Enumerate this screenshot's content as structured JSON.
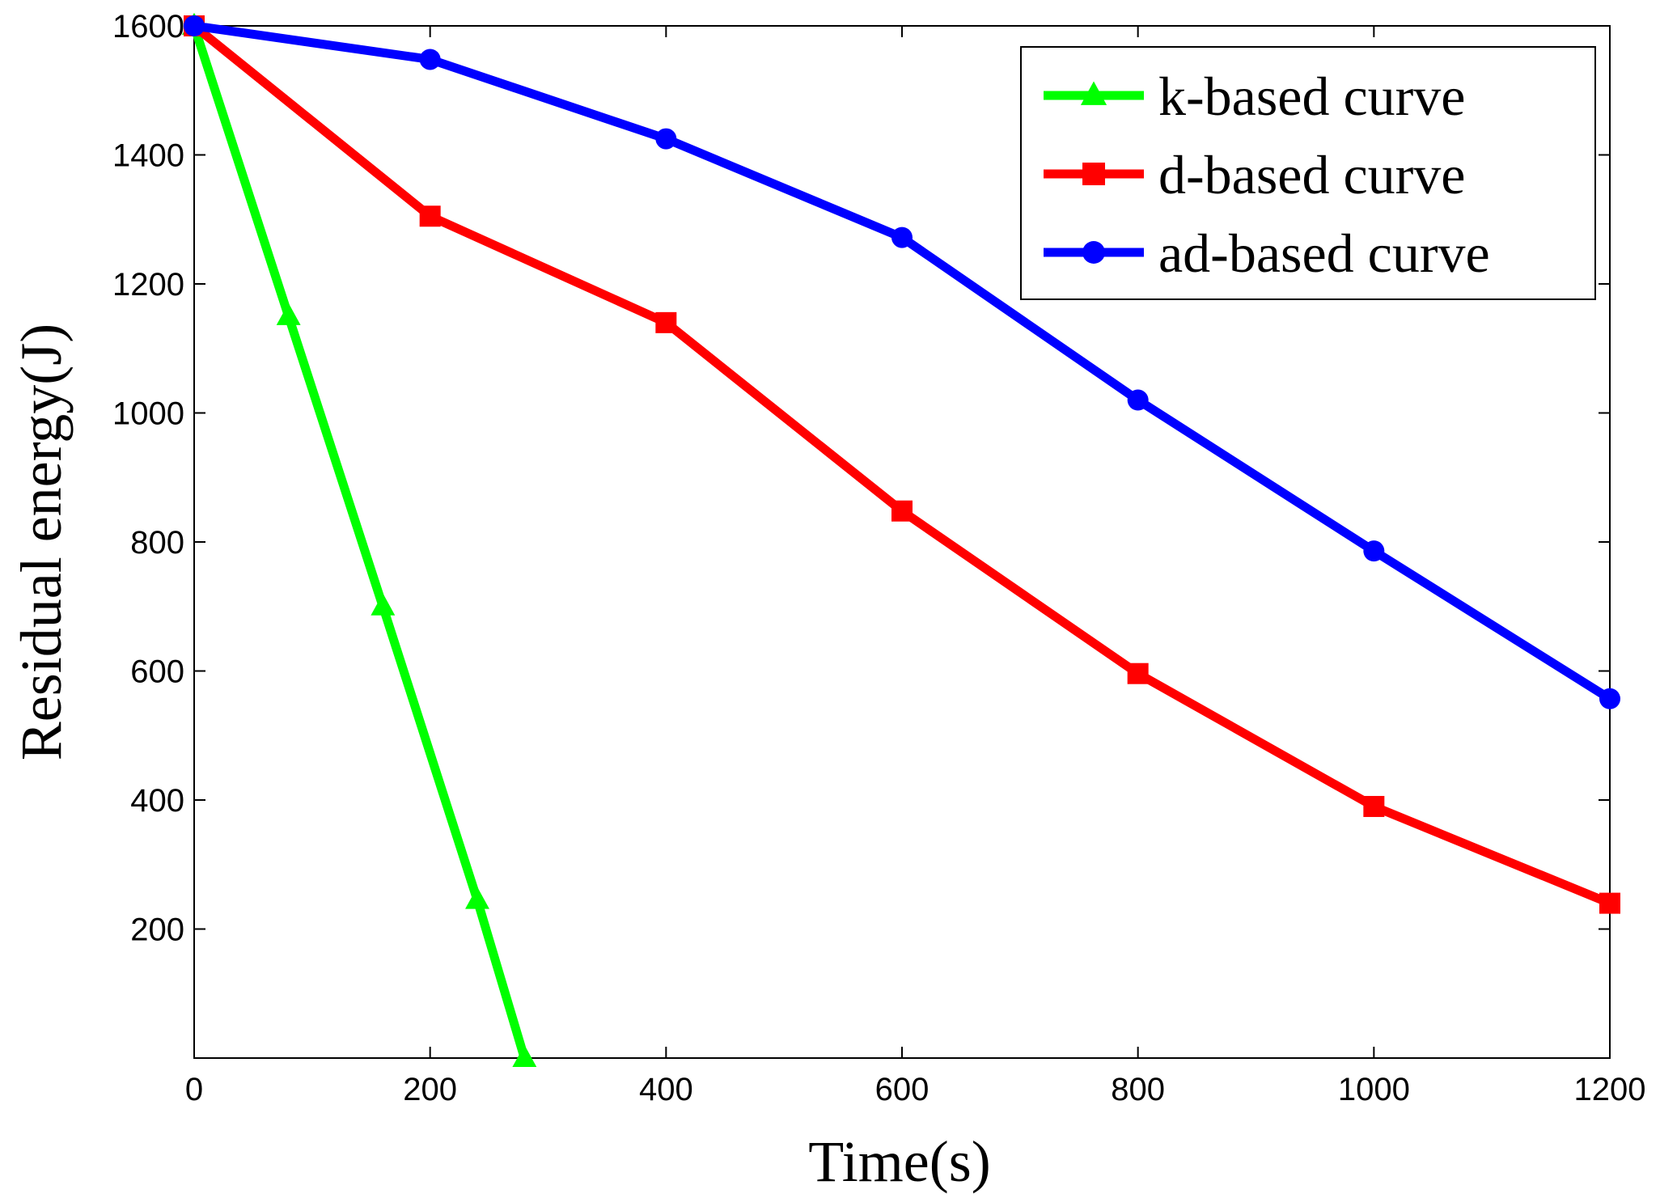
{
  "chart_data": {
    "type": "line",
    "title": "",
    "xlabel": "Time(s)",
    "ylabel": "Residual energy(J)",
    "xlim": [
      0,
      1200
    ],
    "ylim": [
      0,
      1600
    ],
    "xticks": [
      "0",
      "200",
      "400",
      "600",
      "800",
      "1000",
      "1200"
    ],
    "yticks": [
      "200",
      "400",
      "600",
      "800",
      "1000",
      "1200",
      "1400",
      "1600"
    ],
    "grid": false,
    "legend_position": "top-right",
    "series": [
      {
        "name": "k-based curve",
        "color": "#00ff00",
        "marker": "triangle",
        "x": [
          0,
          80,
          160,
          240,
          280
        ],
        "y": [
          1600,
          1150,
          700,
          245,
          0
        ]
      },
      {
        "name": "d-based curve",
        "color": "#ff0000",
        "marker": "square",
        "x": [
          0,
          200,
          400,
          600,
          800,
          1000,
          1200
        ],
        "y": [
          1600,
          1305,
          1140,
          848,
          596,
          390,
          240
        ]
      },
      {
        "name": "ad-based curve",
        "color": "#0000ff",
        "marker": "circle",
        "x": [
          0,
          200,
          400,
          600,
          800,
          1000,
          1200
        ],
        "y": [
          1600,
          1548,
          1425,
          1272,
          1020,
          786,
          557
        ]
      }
    ]
  }
}
